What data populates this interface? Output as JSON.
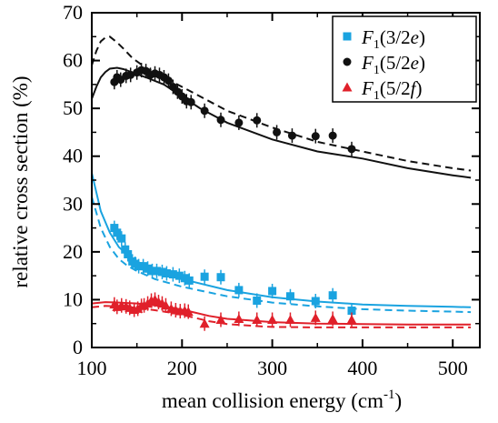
{
  "chart_data": {
    "type": "scatter",
    "xlabel": "mean collision energy (cm",
    "xlabel_sup": "-1",
    "xlabel_close": ")",
    "ylabel": "relative cross section (%)",
    "xlim": [
      100,
      530
    ],
    "ylim": [
      0,
      70
    ],
    "xticks": [
      100,
      200,
      300,
      400,
      500
    ],
    "yticks": [
      0,
      10,
      20,
      30,
      40,
      50,
      60,
      70
    ],
    "legend_position": "top-right",
    "series": [
      {
        "name": "F1(3/2e)",
        "legend": {
          "base": "F",
          "sub": "1",
          "open": "(3/2",
          "italic": "e",
          "close": ")"
        },
        "color": "#1aa3e0",
        "marker": "square",
        "points": [
          [
            125,
            25
          ],
          [
            128,
            24
          ],
          [
            133,
            22.8
          ],
          [
            137,
            20.5
          ],
          [
            140,
            19.5
          ],
          [
            145,
            18
          ],
          [
            148,
            17.5
          ],
          [
            152,
            17
          ],
          [
            157,
            17
          ],
          [
            162,
            16.5
          ],
          [
            167,
            16
          ],
          [
            172,
            16
          ],
          [
            178,
            15.8
          ],
          [
            183,
            15.5
          ],
          [
            190,
            15.3
          ],
          [
            197,
            15
          ],
          [
            203,
            14.5
          ],
          [
            208,
            14
          ],
          [
            225,
            14.8
          ],
          [
            243,
            14.7
          ],
          [
            263,
            12
          ],
          [
            283,
            9.8
          ],
          [
            300,
            11.8
          ],
          [
            320,
            10.7
          ],
          [
            348,
            9.7
          ],
          [
            367,
            10.9
          ],
          [
            388,
            7.7
          ]
        ],
        "fit_solid": [
          [
            100,
            36.5
          ],
          [
            110,
            28.5
          ],
          [
            120,
            24
          ],
          [
            130,
            21
          ],
          [
            140,
            19.3
          ],
          [
            150,
            18
          ],
          [
            170,
            16.2
          ],
          [
            200,
            14.3
          ],
          [
            250,
            12
          ],
          [
            300,
            10.5
          ],
          [
            350,
            9.6
          ],
          [
            400,
            9
          ],
          [
            450,
            8.7
          ],
          [
            500,
            8.5
          ],
          [
            520,
            8.4
          ]
        ],
        "fit_dashed": [
          [
            100,
            31.5
          ],
          [
            110,
            25
          ],
          [
            120,
            21
          ],
          [
            130,
            18.5
          ],
          [
            140,
            17
          ],
          [
            150,
            16
          ],
          [
            170,
            14.3
          ],
          [
            200,
            12.7
          ],
          [
            250,
            10.7
          ],
          [
            300,
            9.4
          ],
          [
            350,
            8.6
          ],
          [
            400,
            8
          ],
          [
            450,
            7.7
          ],
          [
            500,
            7.5
          ],
          [
            520,
            7.4
          ]
        ]
      },
      {
        "name": "F1(5/2e)",
        "legend": {
          "base": "F",
          "sub": "1",
          "open": "(5/2",
          "italic": "e",
          "close": ")"
        },
        "color": "#111111",
        "marker": "circle",
        "points": [
          [
            125,
            55.5
          ],
          [
            128,
            56.5
          ],
          [
            132,
            56
          ],
          [
            138,
            56.8
          ],
          [
            143,
            57
          ],
          [
            150,
            57.5
          ],
          [
            155,
            58
          ],
          [
            160,
            57.8
          ],
          [
            165,
            57
          ],
          [
            170,
            57.3
          ],
          [
            175,
            57
          ],
          [
            180,
            56.5
          ],
          [
            185,
            55.8
          ],
          [
            190,
            54.5
          ],
          [
            195,
            53.5
          ],
          [
            200,
            52.5
          ],
          [
            205,
            51.5
          ],
          [
            210,
            51.3
          ],
          [
            225,
            49.5
          ],
          [
            243,
            47.6
          ],
          [
            263,
            47
          ],
          [
            283,
            47.5
          ],
          [
            305,
            45
          ],
          [
            322,
            44.3
          ],
          [
            348,
            44.2
          ],
          [
            367,
            44.3
          ],
          [
            388,
            41.5
          ]
        ],
        "fit_solid": [
          [
            100,
            52
          ],
          [
            105,
            54.5
          ],
          [
            110,
            56.5
          ],
          [
            115,
            57.6
          ],
          [
            120,
            58.3
          ],
          [
            128,
            58.5
          ],
          [
            135,
            58.2
          ],
          [
            145,
            57.5
          ],
          [
            160,
            56.5
          ],
          [
            180,
            55
          ],
          [
            200,
            52.5
          ],
          [
            220,
            50
          ],
          [
            250,
            47
          ],
          [
            300,
            43.5
          ],
          [
            350,
            41
          ],
          [
            400,
            39.5
          ],
          [
            450,
            37.5
          ],
          [
            500,
            36
          ],
          [
            520,
            35.5
          ]
        ],
        "fit_dashed": [
          [
            100,
            59
          ],
          [
            105,
            62
          ],
          [
            110,
            64
          ],
          [
            115,
            64.8
          ],
          [
            120,
            65
          ],
          [
            128,
            63.8
          ],
          [
            135,
            62.5
          ],
          [
            145,
            60.5
          ],
          [
            160,
            58.5
          ],
          [
            180,
            56.5
          ],
          [
            200,
            54.5
          ],
          [
            220,
            52.5
          ],
          [
            250,
            49.5
          ],
          [
            300,
            46
          ],
          [
            350,
            43
          ],
          [
            400,
            41
          ],
          [
            450,
            39
          ],
          [
            500,
            37.5
          ],
          [
            520,
            37
          ]
        ]
      },
      {
        "name": "F1(5/2f)",
        "legend": {
          "base": "F",
          "sub": "1",
          "open": "(5/2",
          "italic": "f",
          "close": ")"
        },
        "color": "#e0202a",
        "marker": "triangle",
        "points": [
          [
            125,
            9
          ],
          [
            128,
            8.5
          ],
          [
            133,
            8.8
          ],
          [
            138,
            8.6
          ],
          [
            142,
            8.3
          ],
          [
            147,
            7.9
          ],
          [
            151,
            8.1
          ],
          [
            155,
            8.7
          ],
          [
            158,
            8.8
          ],
          [
            162,
            9.2
          ],
          [
            166,
            9.8
          ],
          [
            170,
            10
          ],
          [
            174,
            9.5
          ],
          [
            178,
            9.2
          ],
          [
            182,
            8.8
          ],
          [
            188,
            8.1
          ],
          [
            193,
            7.8
          ],
          [
            198,
            7.6
          ],
          [
            203,
            7.7
          ],
          [
            207,
            7.5
          ],
          [
            225,
            5
          ],
          [
            243,
            5.8
          ],
          [
            263,
            6
          ],
          [
            283,
            5.8
          ],
          [
            300,
            5.8
          ],
          [
            320,
            5.8
          ],
          [
            348,
            6.2
          ],
          [
            367,
            6
          ],
          [
            388,
            5.8
          ]
        ],
        "fit_solid": [
          [
            100,
            9.2
          ],
          [
            115,
            9.5
          ],
          [
            130,
            9.4
          ],
          [
            150,
            9.2
          ],
          [
            170,
            8.8
          ],
          [
            190,
            8.3
          ],
          [
            210,
            7.5
          ],
          [
            230,
            6.6
          ],
          [
            250,
            6
          ],
          [
            280,
            5.6
          ],
          [
            300,
            5.3
          ],
          [
            350,
            5
          ],
          [
            400,
            4.9
          ],
          [
            450,
            4.8
          ],
          [
            500,
            4.8
          ],
          [
            520,
            4.8
          ]
        ],
        "fit_dashed": [
          [
            100,
            8.4
          ],
          [
            115,
            8.7
          ],
          [
            130,
            8.6
          ],
          [
            150,
            8.3
          ],
          [
            170,
            7.8
          ],
          [
            190,
            7.2
          ],
          [
            210,
            6.4
          ],
          [
            230,
            5.5
          ],
          [
            250,
            4.9
          ],
          [
            280,
            4.5
          ],
          [
            300,
            4.3
          ],
          [
            350,
            4.2
          ],
          [
            400,
            4.2
          ],
          [
            450,
            4.2
          ],
          [
            500,
            4.2
          ],
          [
            520,
            4.2
          ]
        ]
      }
    ]
  }
}
